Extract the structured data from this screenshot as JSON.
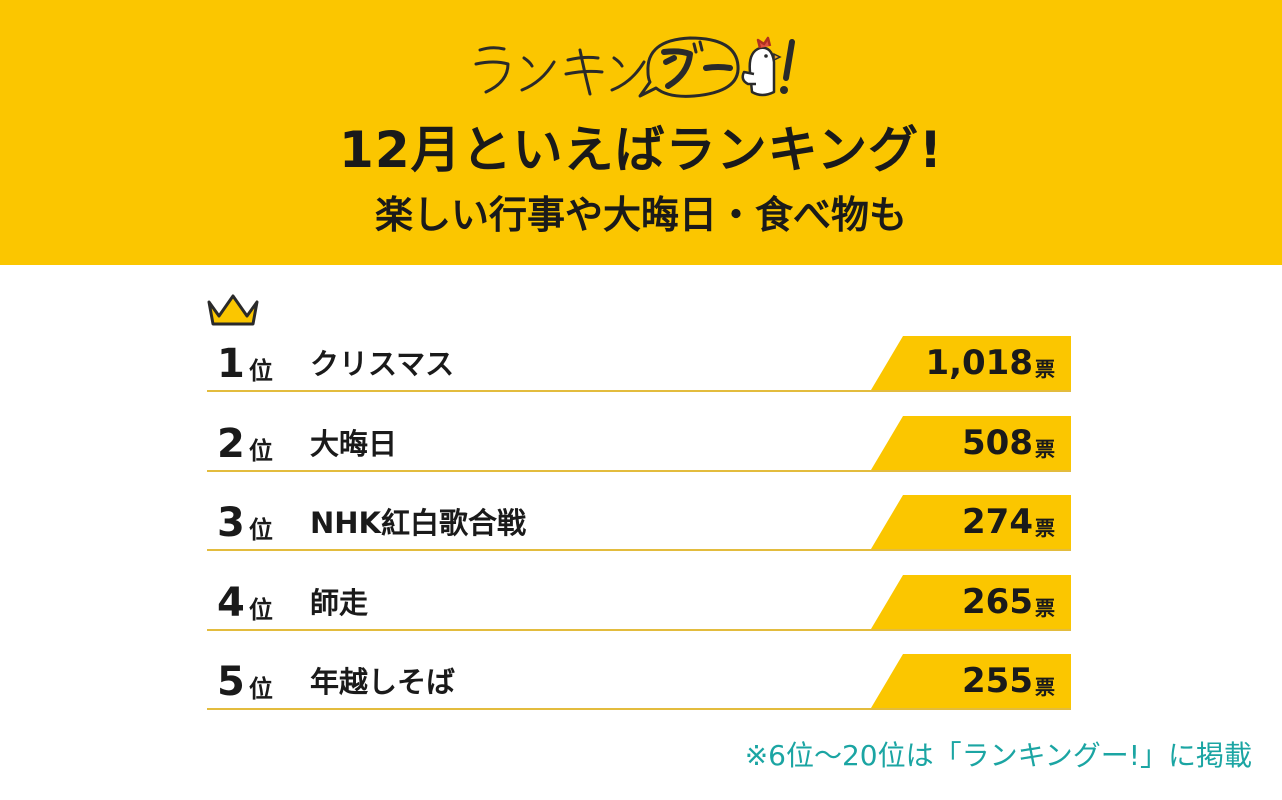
{
  "header": {
    "logo_text": "ランキングー!",
    "title": "12月といえばランキング!",
    "subtitle": "楽しい行事や大晦日・食べ物も"
  },
  "ranking": [
    {
      "rank": "1",
      "rank_suffix": "位",
      "name": "クリスマス",
      "votes": "1,018",
      "unit": "票"
    },
    {
      "rank": "2",
      "rank_suffix": "位",
      "name": "大晦日",
      "votes": "508",
      "unit": "票"
    },
    {
      "rank": "3",
      "rank_suffix": "位",
      "name": "NHK紅白歌合戦",
      "votes": "274",
      "unit": "票"
    },
    {
      "rank": "4",
      "rank_suffix": "位",
      "name": "師走",
      "votes": "265",
      "unit": "票"
    },
    {
      "rank": "5",
      "rank_suffix": "位",
      "name": "年越しそば",
      "votes": "255",
      "unit": "票"
    }
  ],
  "footnote": "※6位〜20位は「ランキングー!」に掲載",
  "colors": {
    "accent": "#fbc600",
    "footnote": "#1ba5a3",
    "divider": "#e3bc3e"
  },
  "icons": {
    "crown": "crown-icon",
    "mascot": "chicken-thumbs-up-icon"
  }
}
